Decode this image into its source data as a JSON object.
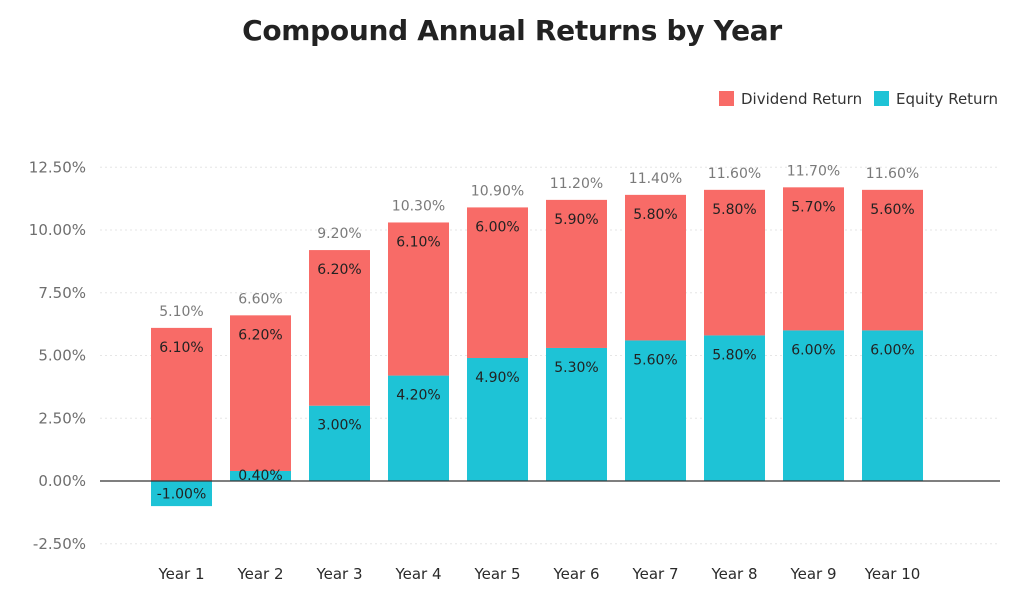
{
  "chart_data": {
    "type": "bar",
    "stacked": true,
    "title": "Compound Annual Returns by Year",
    "categories": [
      "Year 1",
      "Year 2",
      "Year 3",
      "Year 4",
      "Year 5",
      "Year 6",
      "Year 7",
      "Year 8",
      "Year 9",
      "Year 10"
    ],
    "series": [
      {
        "name": "Dividend Return",
        "color": "#f86b67",
        "values": [
          6.1,
          6.2,
          6.2,
          6.1,
          6.0,
          5.9,
          5.8,
          5.8,
          5.7,
          5.6
        ],
        "labels": [
          "6.10%",
          "6.20%",
          "6.20%",
          "6.10%",
          "6.00%",
          "5.90%",
          "5.80%",
          "5.80%",
          "5.70%",
          "5.60%"
        ]
      },
      {
        "name": "Equity Return",
        "color": "#1ec3d6",
        "values": [
          -1.0,
          0.4,
          3.0,
          4.2,
          4.9,
          5.3,
          5.6,
          5.8,
          6.0,
          6.0
        ],
        "labels": [
          "-1.00%",
          "0.40%",
          "3.00%",
          "4.20%",
          "4.90%",
          "5.30%",
          "5.60%",
          "5.80%",
          "6.00%",
          "6.00%"
        ]
      }
    ],
    "totals": [
      "5.10%",
      "6.60%",
      "9.20%",
      "10.30%",
      "10.90%",
      "11.20%",
      "11.40%",
      "11.60%",
      "11.70%",
      "11.60%"
    ],
    "ylim": [
      -2.5,
      12.5
    ],
    "yticks": [
      -2.5,
      0,
      2.5,
      5.0,
      7.5,
      10.0,
      12.5
    ],
    "ytick_labels": [
      "-2.50%",
      "0.00%",
      "2.50%",
      "5.00%",
      "7.50%",
      "10.00%",
      "12.50%"
    ],
    "legend": "top-right",
    "grid": true,
    "xlabel": "",
    "ylabel": ""
  }
}
